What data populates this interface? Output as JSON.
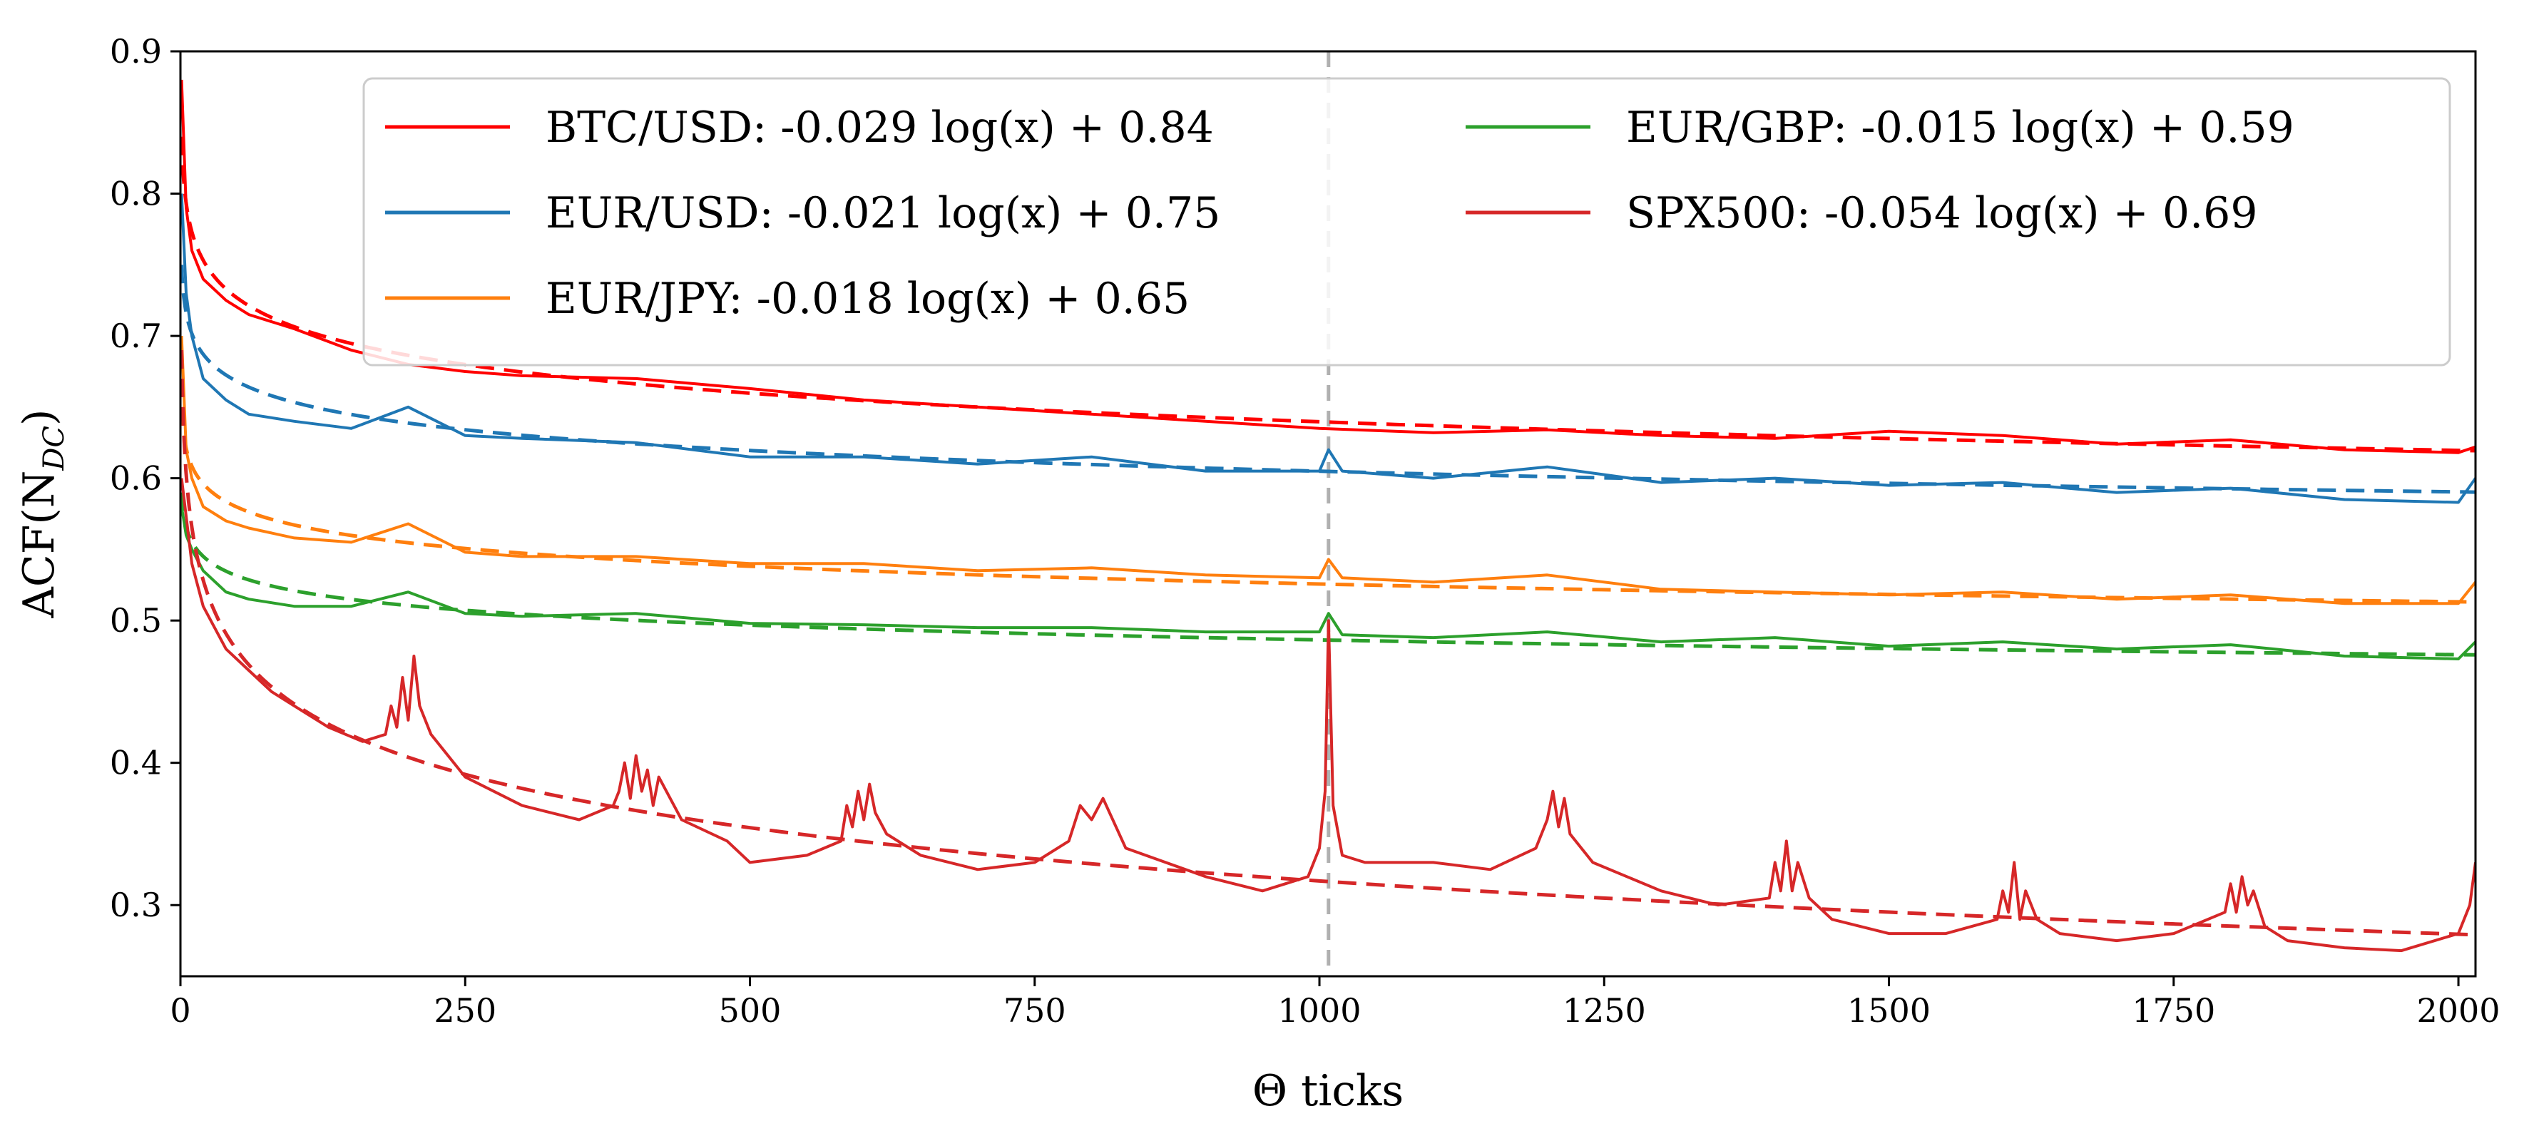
{
  "chart_data": {
    "type": "line",
    "title": "",
    "xlabel": "Θ ticks",
    "ylabel": "ACF(N",
    "ylabel_sub": "DC",
    "ylabel_close": ")",
    "xlim": [
      0,
      2015
    ],
    "ylim": [
      0.25,
      0.9
    ],
    "xticks": [
      0,
      250,
      500,
      750,
      1000,
      1250,
      1500,
      1750,
      2000
    ],
    "xtick_labels": [
      "0",
      "250",
      "500",
      "750",
      "1000",
      "1250",
      "1500",
      "1750",
      "2000"
    ],
    "yticks": [
      0.3,
      0.4,
      0.5,
      0.6,
      0.7,
      0.8,
      0.9
    ],
    "ytick_labels": [
      "0.3",
      "0.4",
      "0.5",
      "0.6",
      "0.7",
      "0.8",
      "0.9"
    ],
    "grid": false,
    "legend_position": "top-right",
    "vline": {
      "x": 1008,
      "color": "#b0b0b0",
      "style": "dashed"
    },
    "series": [
      {
        "name": "BTC/USD",
        "legend_label": "BTC/USD: -0.029 log(x) + 0.84",
        "color": "#ff0000",
        "fit": {
          "a": -0.029,
          "b": 0.84
        },
        "x": [
          1,
          5,
          10,
          20,
          40,
          60,
          100,
          150,
          200,
          250,
          300,
          400,
          500,
          600,
          700,
          800,
          900,
          1000,
          1100,
          1200,
          1300,
          1400,
          1500,
          1600,
          1700,
          1800,
          1900,
          2000,
          2015
        ],
        "values": [
          0.88,
          0.79,
          0.76,
          0.74,
          0.725,
          0.715,
          0.705,
          0.69,
          0.68,
          0.675,
          0.672,
          0.67,
          0.663,
          0.655,
          0.65,
          0.645,
          0.64,
          0.635,
          0.632,
          0.634,
          0.63,
          0.628,
          0.633,
          0.63,
          0.624,
          0.627,
          0.62,
          0.618,
          0.622
        ]
      },
      {
        "name": "EUR/USD",
        "legend_label": "EUR/USD: -0.021 log(x) + 0.75",
        "color": "#1f77b4",
        "fit": {
          "a": -0.021,
          "b": 0.75
        },
        "x": [
          1,
          5,
          10,
          20,
          40,
          60,
          100,
          150,
          200,
          250,
          300,
          400,
          500,
          600,
          700,
          800,
          900,
          1000,
          1008,
          1020,
          1100,
          1200,
          1300,
          1400,
          1500,
          1600,
          1700,
          1800,
          1900,
          2000,
          2015
        ],
        "values": [
          0.8,
          0.73,
          0.7,
          0.67,
          0.655,
          0.645,
          0.64,
          0.635,
          0.65,
          0.63,
          0.628,
          0.625,
          0.615,
          0.615,
          0.61,
          0.615,
          0.605,
          0.605,
          0.62,
          0.605,
          0.6,
          0.608,
          0.597,
          0.6,
          0.595,
          0.597,
          0.59,
          0.593,
          0.585,
          0.583,
          0.6
        ]
      },
      {
        "name": "EUR/JPY",
        "legend_label": "EUR/JPY: -0.018 log(x) + 0.65",
        "color": "#ff7f0e",
        "fit": {
          "a": -0.018,
          "b": 0.65
        },
        "x": [
          1,
          5,
          10,
          20,
          40,
          60,
          100,
          150,
          200,
          250,
          300,
          400,
          500,
          600,
          700,
          800,
          900,
          1000,
          1008,
          1020,
          1100,
          1200,
          1300,
          1400,
          1500,
          1600,
          1700,
          1800,
          1900,
          2000,
          2015
        ],
        "values": [
          0.7,
          0.62,
          0.6,
          0.58,
          0.57,
          0.565,
          0.558,
          0.555,
          0.568,
          0.548,
          0.545,
          0.545,
          0.54,
          0.54,
          0.535,
          0.537,
          0.532,
          0.53,
          0.543,
          0.53,
          0.527,
          0.532,
          0.522,
          0.52,
          0.518,
          0.52,
          0.515,
          0.518,
          0.512,
          0.512,
          0.527
        ]
      },
      {
        "name": "EUR/GBP",
        "legend_label": "EUR/GBP: -0.015 log(x) + 0.59",
        "color": "#2ca02c",
        "fit": {
          "a": -0.015,
          "b": 0.59
        },
        "x": [
          1,
          5,
          10,
          20,
          40,
          60,
          100,
          150,
          200,
          250,
          300,
          400,
          500,
          600,
          700,
          800,
          900,
          1000,
          1008,
          1020,
          1100,
          1200,
          1300,
          1400,
          1500,
          1600,
          1700,
          1800,
          1900,
          2000,
          2015
        ],
        "values": [
          0.58,
          0.56,
          0.55,
          0.535,
          0.52,
          0.515,
          0.51,
          0.51,
          0.52,
          0.505,
          0.503,
          0.505,
          0.498,
          0.497,
          0.495,
          0.495,
          0.492,
          0.492,
          0.505,
          0.49,
          0.488,
          0.492,
          0.485,
          0.488,
          0.482,
          0.485,
          0.48,
          0.483,
          0.475,
          0.473,
          0.485
        ]
      },
      {
        "name": "SPX500",
        "legend_label": "SPX500: -0.054 log(x) + 0.69",
        "color": "#d62728",
        "fit": {
          "a": -0.054,
          "b": 0.69
        },
        "x": [
          1,
          10,
          20,
          40,
          60,
          80,
          100,
          130,
          160,
          180,
          185,
          190,
          195,
          200,
          205,
          210,
          220,
          250,
          300,
          350,
          380,
          385,
          390,
          395,
          400,
          405,
          410,
          415,
          420,
          440,
          480,
          500,
          550,
          580,
          585,
          590,
          595,
          600,
          605,
          610,
          620,
          650,
          700,
          750,
          780,
          790,
          800,
          810,
          830,
          900,
          950,
          990,
          1000,
          1005,
          1008,
          1012,
          1020,
          1040,
          1100,
          1150,
          1190,
          1200,
          1205,
          1210,
          1215,
          1220,
          1240,
          1300,
          1350,
          1395,
          1400,
          1405,
          1410,
          1415,
          1420,
          1430,
          1450,
          1500,
          1550,
          1595,
          1600,
          1605,
          1610,
          1615,
          1620,
          1630,
          1650,
          1700,
          1750,
          1795,
          1800,
          1805,
          1810,
          1815,
          1820,
          1830,
          1850,
          1900,
          1950,
          2000,
          2010,
          2015
        ],
        "values": [
          0.6,
          0.54,
          0.51,
          0.48,
          0.465,
          0.45,
          0.44,
          0.425,
          0.415,
          0.42,
          0.44,
          0.425,
          0.46,
          0.43,
          0.475,
          0.44,
          0.42,
          0.39,
          0.37,
          0.36,
          0.37,
          0.38,
          0.4,
          0.375,
          0.405,
          0.38,
          0.395,
          0.37,
          0.39,
          0.36,
          0.345,
          0.33,
          0.335,
          0.345,
          0.37,
          0.355,
          0.38,
          0.36,
          0.385,
          0.365,
          0.35,
          0.335,
          0.325,
          0.33,
          0.345,
          0.37,
          0.36,
          0.375,
          0.34,
          0.32,
          0.31,
          0.32,
          0.34,
          0.38,
          0.5,
          0.37,
          0.335,
          0.33,
          0.33,
          0.325,
          0.34,
          0.36,
          0.38,
          0.355,
          0.375,
          0.35,
          0.33,
          0.31,
          0.3,
          0.305,
          0.33,
          0.31,
          0.345,
          0.31,
          0.33,
          0.305,
          0.29,
          0.28,
          0.28,
          0.29,
          0.31,
          0.295,
          0.33,
          0.29,
          0.31,
          0.29,
          0.28,
          0.275,
          0.28,
          0.295,
          0.315,
          0.295,
          0.32,
          0.3,
          0.31,
          0.285,
          0.275,
          0.27,
          0.268,
          0.28,
          0.3,
          0.33
        ]
      }
    ]
  }
}
